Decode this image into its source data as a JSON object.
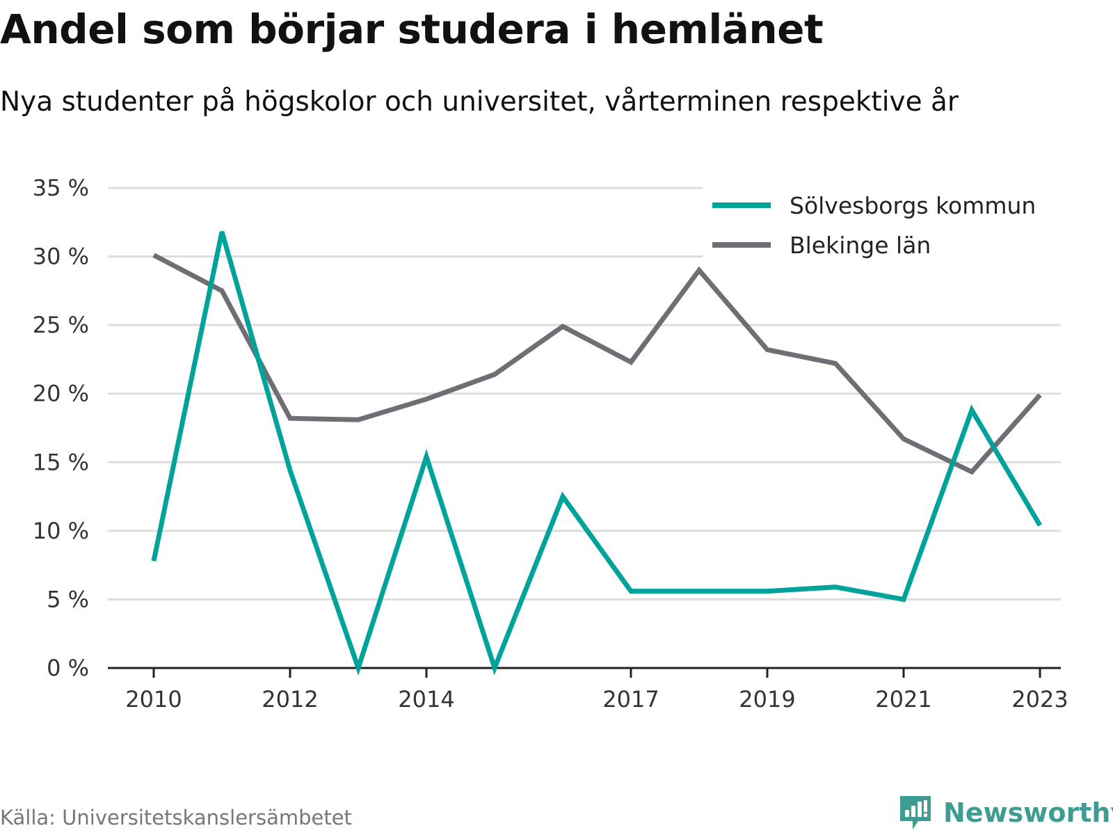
{
  "title": "Andel som börjar studera i hemlänet",
  "subtitle": "Nya studenter på högskolor och universitet, vårterminen respektive år",
  "source": "Källa: Universitetskanslersämbetet",
  "brand": "Newsworthy",
  "colors": {
    "series_0": "#00a39a",
    "series_1": "#6e6e75",
    "grid": "#dddddd",
    "axis": "#222222",
    "brand": "#3e9c92"
  },
  "chart_data": {
    "type": "line",
    "title": "Andel som börjar studera i hemlänet",
    "subtitle": "Nya studenter på högskolor och universitet, vårterminen respektive år",
    "x": [
      2010,
      2011,
      2012,
      2013,
      2014,
      2015,
      2016,
      2017,
      2018,
      2019,
      2020,
      2021,
      2022,
      2023
    ],
    "x_tick_labels": [
      "2010",
      "2012",
      "2014",
      "2017",
      "2019",
      "2021",
      "2023"
    ],
    "y_tick_labels": [
      "0 %",
      "5 %",
      "10 %",
      "15 %",
      "20 %",
      "25 %",
      "30 %",
      "35 %"
    ],
    "ylim": [
      0,
      35
    ],
    "grid": true,
    "legend_position": "top-right",
    "series": [
      {
        "name": "Sölvesborgs kommun",
        "values": [
          7.8,
          31.8,
          14.4,
          0.0,
          15.4,
          0.0,
          12.5,
          5.6,
          5.6,
          5.6,
          5.9,
          5.0,
          18.8,
          10.4
        ]
      },
      {
        "name": "Blekinge län",
        "values": [
          30.1,
          27.5,
          18.2,
          18.1,
          19.6,
          21.4,
          24.9,
          22.3,
          29.0,
          23.2,
          22.2,
          16.7,
          14.3,
          19.9
        ]
      }
    ]
  }
}
